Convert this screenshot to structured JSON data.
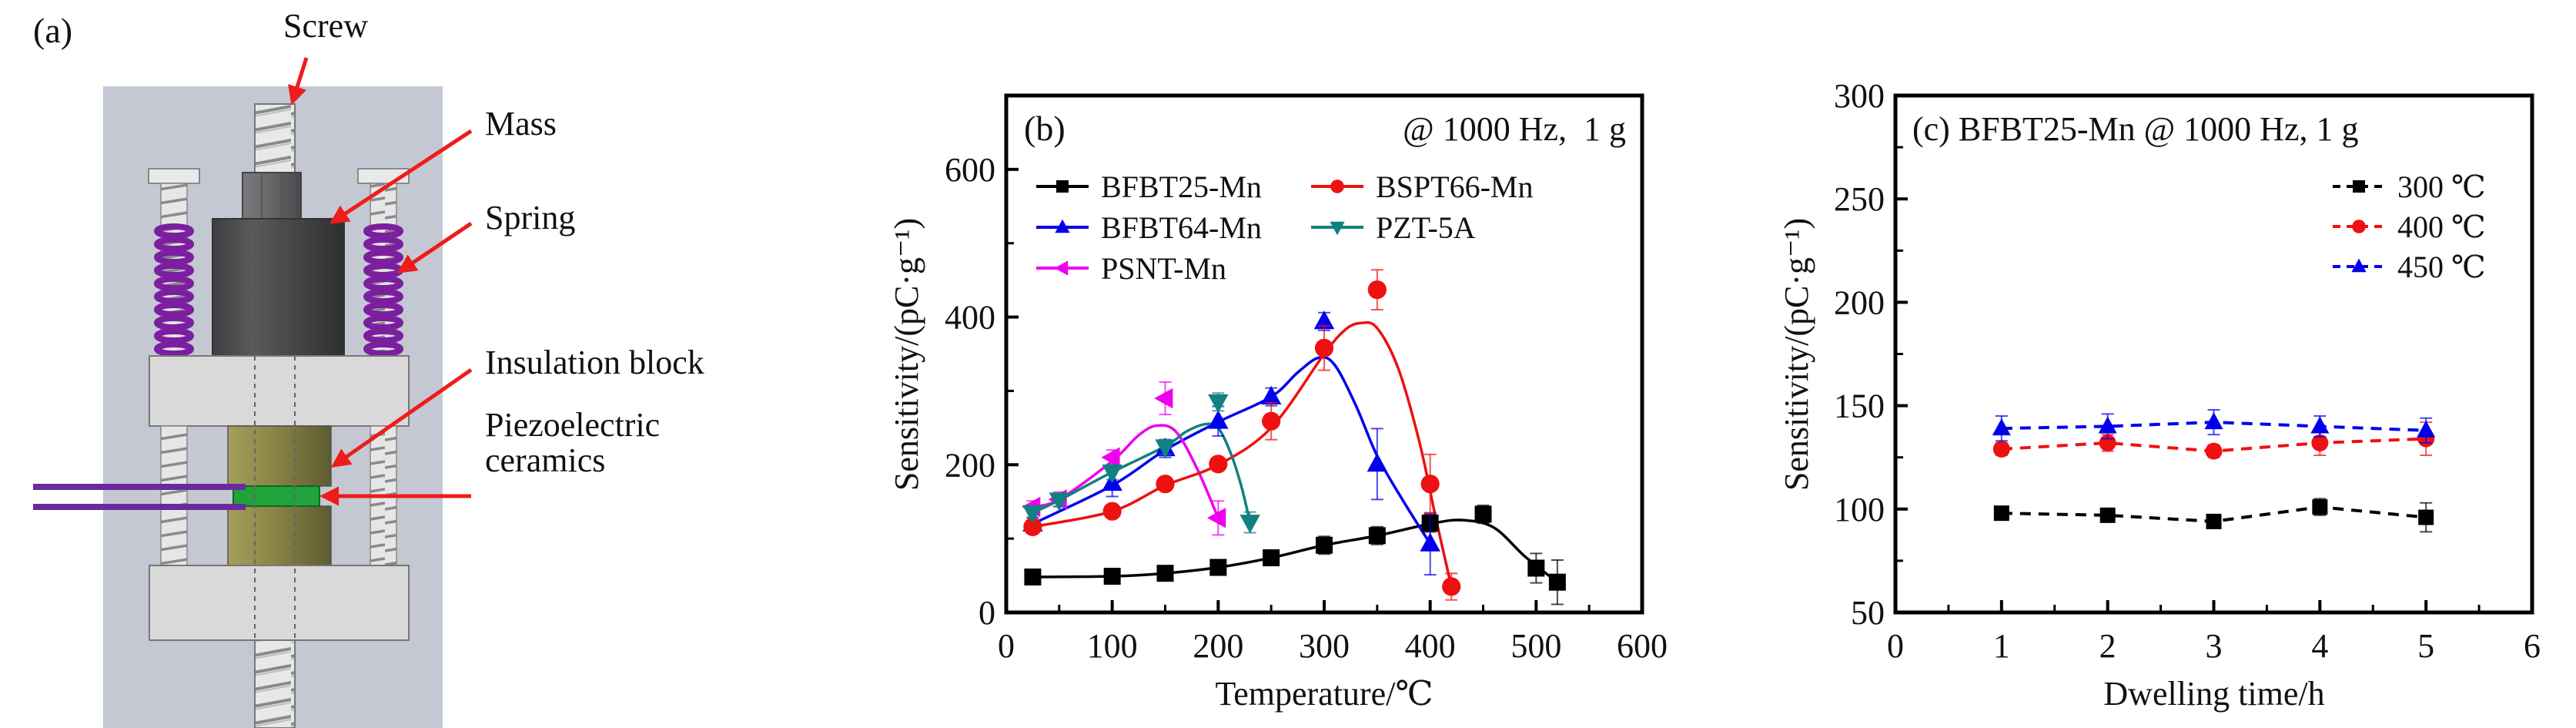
{
  "figure": {
    "panel_a": {
      "label": "(a)",
      "annotations": {
        "screw": "Screw",
        "mass": "Mass",
        "spring": "Spring",
        "insulation": "Insulation block",
        "piezo_line1": "Piezoelectric",
        "piezo_line2": "ceramics"
      },
      "colors": {
        "background": "#c4c8d2",
        "plate": "#d9d9d9",
        "mass": "#4b4b4d",
        "insulation": "#8c874a",
        "ceramic": "#1fa33a",
        "spring": "#7b1fa0",
        "wire": "#6a2a9e",
        "arrow": "#ee1c1c"
      }
    }
  },
  "chart_data": [
    {
      "type": "line",
      "panel": "(b)",
      "title": "@ 1000 Hz,  1 g",
      "xlabel": "Temperature/℃",
      "ylabel": "Sensitivity/(pC·g⁻¹)",
      "xlim": [
        0,
        600
      ],
      "ylim": [
        0,
        700
      ],
      "xticks": [
        "0",
        "100",
        "200",
        "300",
        "400",
        "500",
        "600"
      ],
      "yticks": [
        "0",
        "200",
        "400",
        "600"
      ],
      "legend": "top-left, two columns",
      "series": [
        {
          "name": "BFBT25-Mn",
          "color": "#000000",
          "marker": "square",
          "x": [
            25,
            100,
            150,
            200,
            250,
            300,
            350,
            400,
            450,
            500,
            520
          ],
          "y": [
            48,
            49,
            53,
            61,
            74,
            91,
            104,
            121,
            133,
            60,
            41
          ],
          "err": [
            4,
            8,
            8,
            5,
            8,
            12,
            12,
            12,
            12,
            20,
            30
          ],
          "fit_x": [
            25,
            100,
            150,
            200,
            250,
            300,
            350,
            400,
            430,
            460,
            490,
            520
          ],
          "fit_y": [
            48,
            49,
            53,
            61,
            74,
            91,
            104,
            120,
            125,
            115,
            75,
            41
          ]
        },
        {
          "name": "BFBT64-Mn",
          "color": "#0000ee",
          "marker": "triangle-up",
          "x": [
            25,
            100,
            150,
            200,
            250,
            300,
            350,
            400
          ],
          "y": [
            120,
            175,
            222,
            259,
            292,
            394,
            201,
            93
          ],
          "err": [
            8,
            18,
            12,
            20,
            12,
            12,
            48,
            42
          ],
          "fit_x": [
            25,
            100,
            150,
            200,
            250,
            275,
            295,
            310,
            330,
            350,
            375,
            400
          ],
          "fit_y": [
            120,
            172,
            220,
            258,
            292,
            325,
            345,
            335,
            280,
            212,
            150,
            93
          ]
        },
        {
          "name": "PSNT-Mn",
          "color": "#ee00ee",
          "marker": "triangle-left",
          "x": [
            25,
            50,
            100,
            150,
            200
          ],
          "y": [
            143,
            153,
            210,
            290,
            128
          ],
          "err": [
            8,
            10,
            10,
            22,
            23
          ],
          "fit_x": [
            25,
            50,
            100,
            125,
            142,
            160,
            180,
            200
          ],
          "fit_y": [
            143,
            153,
            205,
            240,
            253,
            245,
            195,
            128
          ]
        },
        {
          "name": "BSPT66-Mn",
          "color": "#ee1111",
          "marker": "circle",
          "x": [
            25,
            100,
            150,
            200,
            250,
            300,
            350,
            400,
            420
          ],
          "y": [
            116,
            137,
            174,
            201,
            259,
            358,
            437,
            174,
            35
          ],
          "err": [
            5,
            8,
            8,
            8,
            25,
            30,
            27,
            40,
            18
          ],
          "fit_x": [
            25,
            100,
            150,
            200,
            250,
            300,
            320,
            335,
            350,
            370,
            390,
            405,
            420
          ],
          "fit_y": [
            116,
            137,
            172,
            200,
            250,
            350,
            383,
            392,
            385,
            330,
            230,
            130,
            35
          ]
        },
        {
          "name": "PZT-5A",
          "color": "#118080",
          "marker": "triangle-down",
          "x": [
            25,
            50,
            100,
            150,
            200,
            230
          ],
          "y": [
            135,
            152,
            190,
            224,
            285,
            122
          ],
          "err": [
            6,
            8,
            10,
            10,
            12,
            14
          ],
          "fit_x": [
            25,
            50,
            100,
            150,
            170,
            188,
            200,
            212,
            222,
            230
          ],
          "fit_y": [
            135,
            152,
            190,
            225,
            245,
            255,
            250,
            215,
            170,
            122
          ]
        }
      ]
    },
    {
      "type": "line",
      "panel": "(c)",
      "title": "BFBT25-Mn @ 1000 Hz, 1 g",
      "xlabel": "Dwelling time/h",
      "ylabel": "Sensitivity/(pC·g⁻¹)",
      "xlim": [
        0,
        6
      ],
      "ylim": [
        50,
        300
      ],
      "xticks": [
        "0",
        "1",
        "2",
        "3",
        "4",
        "5",
        "6"
      ],
      "yticks": [
        "50",
        "100",
        "150",
        "200",
        "250",
        "300"
      ],
      "legend": "top-right",
      "line_style": "dashed",
      "series": [
        {
          "name": "300 ℃",
          "color": "#000000",
          "marker": "square",
          "x": [
            1,
            2,
            3,
            4,
            5
          ],
          "y": [
            98,
            97,
            94,
            101,
            96
          ],
          "err": [
            2,
            3,
            2,
            4,
            7
          ]
        },
        {
          "name": "400 ℃",
          "color": "#ee1111",
          "marker": "circle",
          "x": [
            1,
            2,
            3,
            4,
            5
          ],
          "y": [
            129,
            132,
            128,
            132,
            134
          ],
          "err": [
            3,
            4,
            3,
            6,
            8
          ]
        },
        {
          "name": "450 ℃",
          "color": "#0000ee",
          "marker": "triangle-up",
          "x": [
            1,
            2,
            3,
            4,
            5
          ],
          "y": [
            139,
            140,
            142,
            140,
            138
          ],
          "err": [
            6,
            6,
            6,
            5,
            6
          ]
        }
      ]
    }
  ]
}
